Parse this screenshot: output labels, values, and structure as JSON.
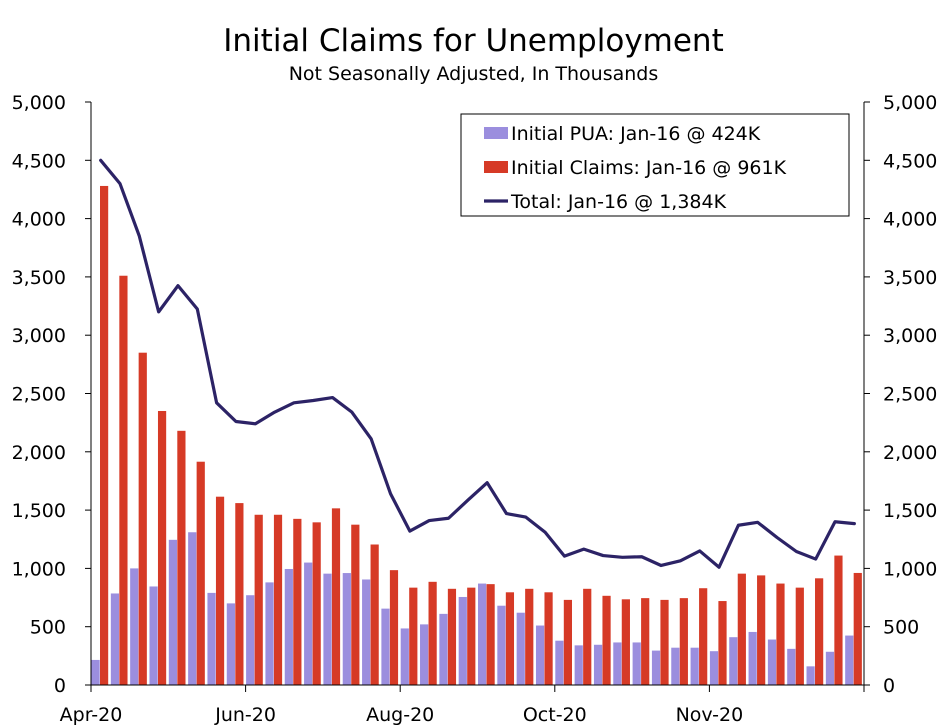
{
  "chart_data": {
    "type": "bar",
    "title": "Initial Claims for Unemployment",
    "subtitle": "Not Seasonally Adjusted, In Thousands",
    "ylim": [
      0,
      5000
    ],
    "yticks": [
      "5,000",
      "4,500",
      "4,000",
      "3,500",
      "3,000",
      "2,500",
      "2,000",
      "1,500",
      "1,000",
      "500",
      "0"
    ],
    "yticks_right": [
      "5,000",
      "4,500",
      "4,000",
      "3,500",
      "3,000",
      "2,500",
      "2,000",
      "1,500",
      "1,000",
      "500",
      "0"
    ],
    "xticks": [
      {
        "label": "Apr-20",
        "index": 0
      },
      {
        "label": "Jun-20",
        "index": 8
      },
      {
        "label": "Aug-20",
        "index": 16
      },
      {
        "label": "Oct-20",
        "index": 24
      },
      {
        "label": "Nov-20",
        "index": 32
      }
    ],
    "n_periods": 40,
    "series": [
      {
        "name": "Initial PUA",
        "type": "bar",
        "color": "#9b8ede",
        "values": [
          215,
          785,
          1000,
          845,
          1245,
          1310,
          790,
          700,
          770,
          880,
          995,
          1050,
          955,
          960,
          905,
          655,
          485,
          520,
          610,
          755,
          870,
          680,
          620,
          510,
          380,
          340,
          345,
          365,
          365,
          295,
          320,
          320,
          290,
          410,
          455,
          390,
          310,
          160,
          285,
          424
        ]
      },
      {
        "name": "Initial Claims",
        "type": "bar",
        "color": "#d63a26",
        "values": [
          4280,
          3510,
          2850,
          2350,
          2180,
          1915,
          1615,
          1560,
          1460,
          1460,
          1425,
          1395,
          1515,
          1375,
          1205,
          985,
          835,
          885,
          825,
          835,
          865,
          795,
          825,
          795,
          730,
          825,
          765,
          735,
          745,
          730,
          745,
          830,
          720,
          955,
          940,
          870,
          835,
          915,
          1110,
          961
        ]
      },
      {
        "name": "Total",
        "type": "line",
        "color": "#2c2366",
        "values": [
          4500,
          4300,
          3850,
          3200,
          3425,
          3225,
          2420,
          2260,
          2240,
          2340,
          2420,
          2440,
          2465,
          2340,
          2110,
          1640,
          1320,
          1410,
          1430,
          1585,
          1735,
          1470,
          1440,
          1310,
          1105,
          1165,
          1110,
          1095,
          1100,
          1025,
          1065,
          1150,
          1010,
          1370,
          1395,
          1265,
          1145,
          1080,
          1400,
          1384
        ]
      }
    ],
    "legend": [
      {
        "label": "Initial PUA: Jan-16 @ 424K",
        "marker": "bar",
        "color": "#9b8ede"
      },
      {
        "label": "Initial Claims: Jan-16 @ 961K",
        "marker": "bar",
        "color": "#d63a26"
      },
      {
        "label": "Total: Jan-16 @ 1,384K",
        "marker": "line",
        "color": "#2c2366"
      }
    ],
    "legend_position": "top-right",
    "grid": false
  }
}
